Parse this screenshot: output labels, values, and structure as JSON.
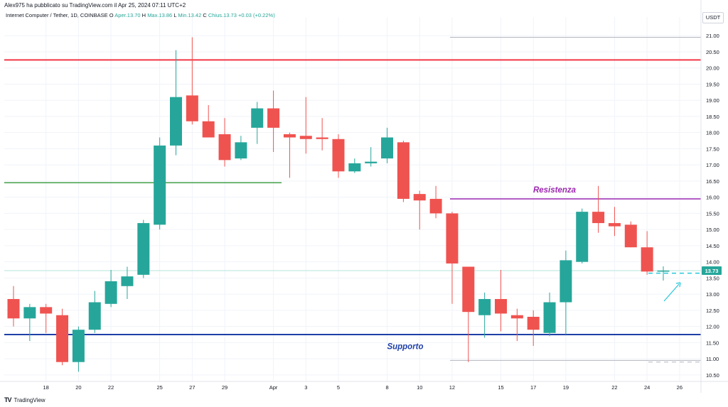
{
  "header": {
    "caption": "Alex975 ha pubblicato su TradingView.com il Apr 25, 2024 07:11 UTC+2",
    "symbol": "Internet Computer / Tether, 1D, COINBASE",
    "open_label": "O",
    "open_value": "Aper.13.70",
    "high_label": "H",
    "high_value": "Max.13.86",
    "low_label": "L",
    "low_value": "Min.13.42",
    "close_label": "C",
    "close_value": "Chius.13.73",
    "change_value": "+0.03 (+0.22%)",
    "currency": "USDT"
  },
  "footer": {
    "brand": "TradingView"
  },
  "chart_data": {
    "type": "candlestick",
    "y_range": [
      10.3,
      21.4
    ],
    "y_ticks": [
      "10.50",
      "11.00",
      "11.50",
      "12.00",
      "12.50",
      "13.00",
      "13.50",
      "14.00",
      "14.50",
      "15.00",
      "15.50",
      "16.00",
      "16.50",
      "17.00",
      "17.50",
      "18.00",
      "18.50",
      "19.00",
      "19.50",
      "20.00",
      "20.50",
      "21.00"
    ],
    "x_ticks": [
      "18",
      "20",
      "22",
      "25",
      "27",
      "29",
      "Apr",
      "3",
      "5",
      "8",
      "10",
      "12",
      "15",
      "17",
      "19",
      "22",
      "24",
      "26"
    ],
    "last_price_label": "13.73",
    "colors": {
      "up": "#26a69a",
      "down": "#ef5350"
    },
    "candles": [
      {
        "o": 12.85,
        "h": 13.25,
        "l": 12.0,
        "c": 12.25
      },
      {
        "o": 12.25,
        "h": 12.7,
        "l": 11.55,
        "c": 12.6
      },
      {
        "o": 12.6,
        "h": 12.7,
        "l": 11.8,
        "c": 12.4
      },
      {
        "o": 12.35,
        "h": 12.55,
        "l": 10.8,
        "c": 10.9
      },
      {
        "o": 10.9,
        "h": 12.0,
        "l": 10.6,
        "c": 11.9
      },
      {
        "o": 11.9,
        "h": 13.1,
        "l": 11.8,
        "c": 12.75
      },
      {
        "o": 12.7,
        "h": 13.75,
        "l": 12.6,
        "c": 13.4
      },
      {
        "o": 13.25,
        "h": 13.85,
        "l": 12.85,
        "c": 13.55
      },
      {
        "o": 13.6,
        "h": 15.3,
        "l": 13.5,
        "c": 15.2
      },
      {
        "o": 15.15,
        "h": 17.85,
        "l": 15.0,
        "c": 17.6
      },
      {
        "o": 17.6,
        "h": 20.55,
        "l": 17.3,
        "c": 19.1
      },
      {
        "o": 19.15,
        "h": 20.95,
        "l": 18.25,
        "c": 18.35
      },
      {
        "o": 18.35,
        "h": 18.85,
        "l": 17.9,
        "c": 17.85
      },
      {
        "o": 17.95,
        "h": 18.45,
        "l": 16.95,
        "c": 17.15
      },
      {
        "o": 17.2,
        "h": 17.9,
        "l": 17.15,
        "c": 17.7
      },
      {
        "o": 18.15,
        "h": 18.95,
        "l": 17.65,
        "c": 18.75
      },
      {
        "o": 18.75,
        "h": 19.3,
        "l": 17.4,
        "c": 18.15
      },
      {
        "o": 17.95,
        "h": 18.0,
        "l": 16.6,
        "c": 17.85
      },
      {
        "o": 17.9,
        "h": 19.1,
        "l": 17.35,
        "c": 17.8
      },
      {
        "o": 17.85,
        "h": 18.45,
        "l": 17.45,
        "c": 17.8
      },
      {
        "o": 17.8,
        "h": 17.95,
        "l": 16.6,
        "c": 16.8
      },
      {
        "o": 16.8,
        "h": 17.2,
        "l": 16.75,
        "c": 17.05
      },
      {
        "o": 17.05,
        "h": 17.55,
        "l": 16.95,
        "c": 17.1
      },
      {
        "o": 17.2,
        "h": 18.15,
        "l": 17.05,
        "c": 17.85
      },
      {
        "o": 17.7,
        "h": 17.75,
        "l": 15.85,
        "c": 15.95
      },
      {
        "o": 16.1,
        "h": 16.2,
        "l": 15.0,
        "c": 15.9
      },
      {
        "o": 15.95,
        "h": 16.35,
        "l": 15.35,
        "c": 15.5
      },
      {
        "o": 15.5,
        "h": 15.55,
        "l": 12.7,
        "c": 13.95
      },
      {
        "o": 13.85,
        "h": 13.85,
        "l": 10.9,
        "c": 12.45
      },
      {
        "o": 12.35,
        "h": 13.05,
        "l": 11.65,
        "c": 12.85
      },
      {
        "o": 12.85,
        "h": 13.75,
        "l": 11.85,
        "c": 12.4
      },
      {
        "o": 12.35,
        "h": 12.55,
        "l": 11.55,
        "c": 12.25
      },
      {
        "o": 12.3,
        "h": 12.5,
        "l": 11.4,
        "c": 11.9
      },
      {
        "o": 11.8,
        "h": 13.05,
        "l": 11.7,
        "c": 12.75
      },
      {
        "o": 12.75,
        "h": 14.35,
        "l": 11.75,
        "c": 14.05
      },
      {
        "o": 14.0,
        "h": 15.65,
        "l": 13.95,
        "c": 15.55
      },
      {
        "o": 15.55,
        "h": 16.35,
        "l": 14.9,
        "c": 15.2
      },
      {
        "o": 15.2,
        "h": 15.7,
        "l": 14.8,
        "c": 15.1
      },
      {
        "o": 15.15,
        "h": 15.25,
        "l": 14.45,
        "c": 14.45
      },
      {
        "o": 14.45,
        "h": 14.95,
        "l": 13.6,
        "c": 13.7
      },
      {
        "o": 13.7,
        "h": 13.86,
        "l": 13.42,
        "c": 13.73
      }
    ],
    "levels": [
      {
        "name": "red-resistance-line",
        "price": 20.25,
        "color": "#f23645",
        "from": 0,
        "to": "end",
        "width": 2
      },
      {
        "name": "green-line",
        "price": 16.45,
        "color": "#43a047",
        "from": 0,
        "to": 16.5,
        "width": 1.5
      },
      {
        "name": "resistenza-line",
        "price": 15.95,
        "color": "#9c27b0",
        "from": 27,
        "to": "end",
        "width": 1.5
      },
      {
        "name": "supporto-line",
        "price": 11.75,
        "color": "#2040a8",
        "from": 0,
        "to": "end",
        "width": 2
      },
      {
        "name": "gray-upper-line",
        "price": 20.95,
        "color": "#b2b5be",
        "from": 27,
        "to": "end",
        "width": 1
      },
      {
        "name": "gray-lower-line",
        "price": 10.95,
        "color": "#b2b5be",
        "from": 27,
        "to": "end",
        "width": 1
      }
    ],
    "annotations": [
      {
        "name": "resistenza-label",
        "text": "Resistenza",
        "color": "#9c27b0"
      },
      {
        "name": "supporto-label",
        "text": "Supporto",
        "color": "#2040a8"
      }
    ]
  }
}
